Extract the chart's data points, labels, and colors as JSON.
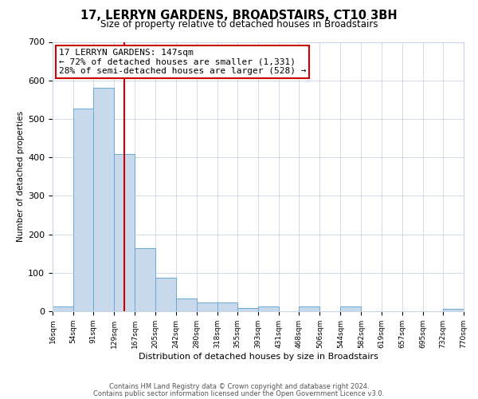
{
  "title": "17, LERRYN GARDENS, BROADSTAIRS, CT10 3BH",
  "subtitle": "Size of property relative to detached houses in Broadstairs",
  "xlabel": "Distribution of detached houses by size in Broadstairs",
  "ylabel": "Number of detached properties",
  "bin_edges": [
    16,
    54,
    91,
    129,
    167,
    205,
    242,
    280,
    318,
    355,
    393,
    431,
    468,
    506,
    544,
    582,
    619,
    657,
    695,
    732,
    770
  ],
  "bar_heights": [
    12,
    527,
    580,
    408,
    163,
    87,
    33,
    23,
    23,
    8,
    13,
    0,
    13,
    0,
    12,
    0,
    0,
    0,
    0,
    7
  ],
  "bar_color": "#c9d9ec",
  "bar_edgecolor": "#6aaad4",
  "vline_x": 147,
  "vline_color": "#cc0000",
  "annotation_title": "17 LERRYN GARDENS: 147sqm",
  "annotation_line1": "← 72% of detached houses are smaller (1,331)",
  "annotation_line2": "28% of semi-detached houses are larger (528) →",
  "annotation_box_facecolor": "#ffffff",
  "annotation_box_edgecolor": "#cc0000",
  "ylim": [
    0,
    700
  ],
  "yticks": [
    0,
    100,
    200,
    300,
    400,
    500,
    600,
    700
  ],
  "tick_labels": [
    "16sqm",
    "54sqm",
    "91sqm",
    "129sqm",
    "167sqm",
    "205sqm",
    "242sqm",
    "280sqm",
    "318sqm",
    "355sqm",
    "393sqm",
    "431sqm",
    "468sqm",
    "506sqm",
    "544sqm",
    "582sqm",
    "619sqm",
    "657sqm",
    "695sqm",
    "732sqm",
    "770sqm"
  ],
  "footer_line1": "Contains HM Land Registry data © Crown copyright and database right 2024.",
  "footer_line2": "Contains public sector information licensed under the Open Government Licence v3.0.",
  "background_color": "#ffffff",
  "grid_color": "#c8d4e8",
  "title_fontsize": 10.5,
  "subtitle_fontsize": 8.5,
  "ylabel_fontsize": 7.5,
  "xlabel_fontsize": 8,
  "ytick_fontsize": 8,
  "xtick_fontsize": 6.5,
  "annotation_fontsize": 8,
  "footer_fontsize": 6
}
